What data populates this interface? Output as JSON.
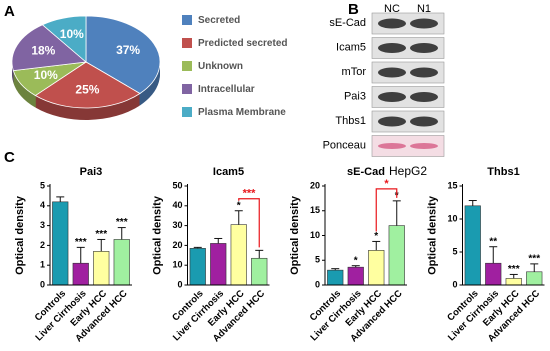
{
  "panel_labels": [
    "A",
    "B",
    "C"
  ],
  "blot": {
    "columns": [
      "NC",
      "N1"
    ],
    "rows": [
      "sE-Cad",
      "Icam5",
      "mTor",
      "Pai3",
      "Thbs1",
      "Ponceau"
    ],
    "cell_line": "HepG2"
  },
  "chart_data": [
    {
      "type": "pie",
      "categories": [
        "Secreted",
        "Predicted secreted",
        "Unknown",
        "Intracellular",
        "Plasma Membrane"
      ],
      "values": [
        37,
        25,
        10,
        18,
        10
      ],
      "value_labels": [
        "37%",
        "25%",
        "10%",
        "18%",
        "10%"
      ],
      "colors": [
        "#4f81bd",
        "#c0504d",
        "#9bbb59",
        "#8064a2",
        "#4bacc6"
      ]
    },
    {
      "type": "bar",
      "title": "Pai3",
      "y_label": "Optical density",
      "categories": [
        "Controls",
        "Liver Cirrhosis",
        "Early HCC",
        "Advanced HCC"
      ],
      "values": [
        4.2,
        1.1,
        1.7,
        2.3
      ],
      "errors": [
        0.25,
        0.8,
        0.6,
        0.6
      ],
      "significance": [
        null,
        "***",
        "***",
        "***"
      ],
      "colors": [
        "#1a9bb0",
        "#a020a0",
        "#ffffa0",
        "#a0f0a0"
      ],
      "ylim": [
        0,
        5
      ],
      "yticks": [
        0,
        1,
        2,
        3,
        4,
        5
      ]
    },
    {
      "type": "bar",
      "title": "Icam5",
      "y_label": "Optical density",
      "categories": [
        "Controls",
        "Liver Cirrhosis",
        "Early HCC",
        "Advanced HCC"
      ],
      "values": [
        18.5,
        21,
        30.5,
        13.5
      ],
      "errors": [
        0.5,
        2.5,
        7,
        4
      ],
      "significance": [
        null,
        null,
        "*",
        null
      ],
      "comparisons": [
        {
          "between": [
            2,
            3
          ],
          "label": "***",
          "color": "#e8161b"
        }
      ],
      "colors": [
        "#1a9bb0",
        "#a020a0",
        "#ffffa0",
        "#a0f0a0"
      ],
      "ylim": [
        0,
        50
      ],
      "yticks": [
        0,
        10,
        20,
        30,
        40,
        50
      ]
    },
    {
      "type": "bar",
      "title": "sE-Cad",
      "y_label": "Optical density",
      "categories": [
        "Controls",
        "Liver Cirrhosis",
        "Early HCC",
        "Advanced HCC"
      ],
      "values": [
        3,
        3.6,
        7,
        12
      ],
      "errors": [
        0.3,
        0.3,
        1.8,
        5
      ],
      "significance": [
        null,
        "*",
        "*",
        "*"
      ],
      "comparisons": [
        {
          "between": [
            2,
            3
          ],
          "label": "*",
          "color": "#e8161b"
        }
      ],
      "colors": [
        "#1a9bb0",
        "#a020a0",
        "#ffffa0",
        "#a0f0a0"
      ],
      "ylim": [
        0,
        20
      ],
      "yticks": [
        0,
        5,
        10,
        15,
        20
      ]
    },
    {
      "type": "bar",
      "title": "Thbs1",
      "y_label": "Optical density",
      "categories": [
        "Controls",
        "Liver Cirrhosis",
        "Early HCC",
        "Advanced HCC"
      ],
      "values": [
        12,
        3.3,
        1,
        2
      ],
      "errors": [
        0.8,
        2.5,
        0.6,
        1.2
      ],
      "significance": [
        null,
        "**",
        "***",
        "***"
      ],
      "colors": [
        "#1a9bb0",
        "#a020a0",
        "#ffffa0",
        "#a0f0a0"
      ],
      "ylim": [
        0,
        15
      ],
      "yticks": [
        0,
        5,
        10,
        15
      ]
    }
  ]
}
